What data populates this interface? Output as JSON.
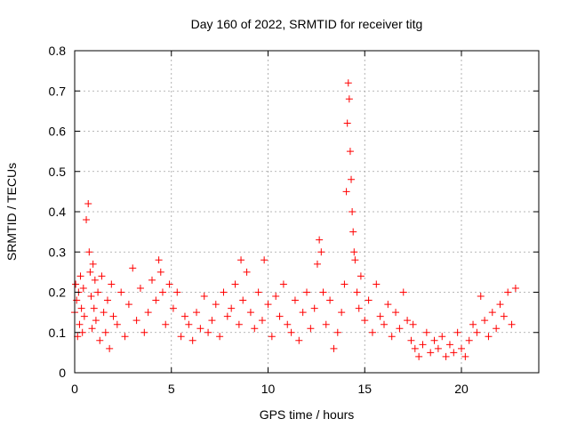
{
  "chart_data": {
    "type": "scatter",
    "title": "Day 160 of 2022, SRMTID for receiver titg",
    "xlabel": "GPS time / hours",
    "ylabel": "SRMTID / TECUs",
    "xlim": [
      0,
      24
    ],
    "ylim": [
      0,
      0.8
    ],
    "xticks": [
      0,
      5,
      10,
      15,
      20
    ],
    "yticks": [
      0,
      0.1,
      0.2,
      0.3,
      0.4,
      0.5,
      0.6,
      0.7,
      0.8
    ],
    "xtick_labels": [
      "0",
      "5",
      "10",
      "15",
      "20"
    ],
    "ytick_labels": [
      "0",
      "0.1",
      "0.2",
      "0.3",
      "0.4",
      "0.5",
      "0.6",
      "0.7",
      "0.8"
    ],
    "grid": true,
    "marker": "+",
    "color": "#ff0000",
    "series": [
      {
        "name": "SRMTID",
        "x": [
          0.0,
          0.05,
          0.1,
          0.15,
          0.2,
          0.25,
          0.3,
          0.35,
          0.4,
          0.45,
          0.5,
          0.6,
          0.7,
          0.75,
          0.8,
          0.85,
          0.9,
          0.95,
          1.0,
          1.05,
          1.1,
          1.2,
          1.3,
          1.4,
          1.5,
          1.6,
          1.7,
          1.8,
          1.9,
          2.0,
          2.2,
          2.4,
          2.6,
          2.8,
          3.0,
          3.2,
          3.4,
          3.6,
          3.8,
          4.0,
          4.2,
          4.35,
          4.45,
          4.55,
          4.7,
          4.9,
          5.1,
          5.3,
          5.5,
          5.7,
          5.9,
          6.1,
          6.3,
          6.5,
          6.7,
          6.9,
          7.1,
          7.3,
          7.5,
          7.7,
          7.9,
          8.1,
          8.3,
          8.5,
          8.6,
          8.7,
          8.9,
          9.1,
          9.3,
          9.5,
          9.7,
          9.8,
          10.0,
          10.2,
          10.4,
          10.6,
          10.8,
          11.0,
          11.2,
          11.4,
          11.6,
          11.8,
          12.0,
          12.2,
          12.4,
          12.55,
          12.65,
          12.75,
          12.85,
          13.0,
          13.2,
          13.4,
          13.6,
          13.8,
          13.95,
          14.05,
          14.1,
          14.15,
          14.2,
          14.25,
          14.3,
          14.35,
          14.4,
          14.45,
          14.5,
          14.6,
          14.7,
          14.8,
          15.0,
          15.2,
          15.4,
          15.6,
          15.8,
          16.0,
          16.2,
          16.4,
          16.6,
          16.8,
          17.0,
          17.2,
          17.4,
          17.5,
          17.6,
          17.8,
          18.0,
          18.2,
          18.4,
          18.6,
          18.8,
          19.0,
          19.2,
          19.4,
          19.6,
          19.8,
          20.0,
          20.2,
          20.4,
          20.6,
          20.8,
          21.0,
          21.2,
          21.4,
          21.6,
          21.8,
          22.0,
          22.2,
          22.4,
          22.6,
          22.8
        ],
        "y": [
          0.15,
          0.22,
          0.18,
          0.09,
          0.2,
          0.12,
          0.24,
          0.16,
          0.1,
          0.21,
          0.14,
          0.38,
          0.42,
          0.3,
          0.25,
          0.19,
          0.11,
          0.27,
          0.16,
          0.23,
          0.13,
          0.2,
          0.08,
          0.24,
          0.15,
          0.1,
          0.18,
          0.06,
          0.22,
          0.14,
          0.12,
          0.2,
          0.09,
          0.17,
          0.26,
          0.13,
          0.21,
          0.1,
          0.15,
          0.23,
          0.18,
          0.28,
          0.25,
          0.2,
          0.12,
          0.22,
          0.16,
          0.2,
          0.09,
          0.14,
          0.12,
          0.08,
          0.15,
          0.11,
          0.19,
          0.1,
          0.13,
          0.17,
          0.09,
          0.2,
          0.14,
          0.16,
          0.22,
          0.12,
          0.28,
          0.18,
          0.25,
          0.15,
          0.11,
          0.2,
          0.13,
          0.28,
          0.17,
          0.09,
          0.19,
          0.14,
          0.22,
          0.12,
          0.1,
          0.18,
          0.08,
          0.15,
          0.2,
          0.11,
          0.16,
          0.27,
          0.33,
          0.3,
          0.2,
          0.12,
          0.18,
          0.06,
          0.1,
          0.15,
          0.22,
          0.45,
          0.62,
          0.72,
          0.68,
          0.55,
          0.48,
          0.4,
          0.35,
          0.3,
          0.28,
          0.2,
          0.16,
          0.24,
          0.13,
          0.18,
          0.1,
          0.22,
          0.14,
          0.12,
          0.17,
          0.09,
          0.15,
          0.11,
          0.2,
          0.13,
          0.08,
          0.12,
          0.06,
          0.04,
          0.07,
          0.1,
          0.05,
          0.08,
          0.06,
          0.09,
          0.04,
          0.07,
          0.05,
          0.1,
          0.06,
          0.04,
          0.08,
          0.12,
          0.1,
          0.19,
          0.13,
          0.09,
          0.15,
          0.11,
          0.17,
          0.14,
          0.2,
          0.12,
          0.21
        ]
      }
    ]
  }
}
